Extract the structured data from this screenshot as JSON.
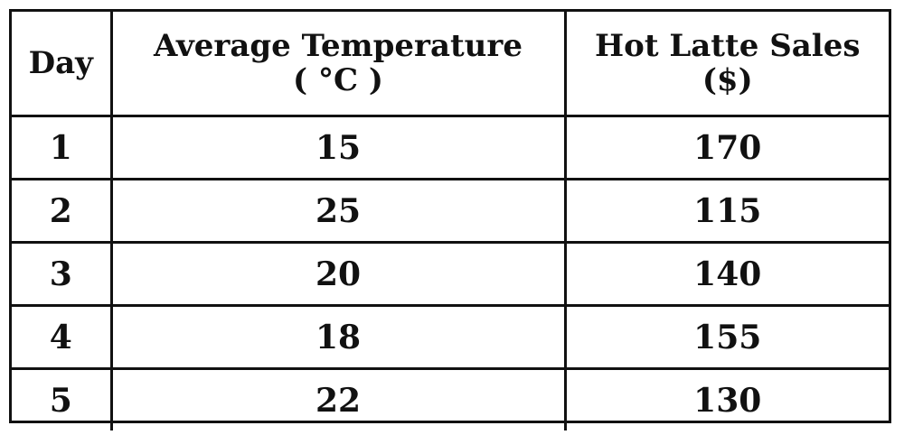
{
  "chart_data": {
    "type": "table",
    "columns": [
      {
        "name": "Day"
      },
      {
        "name": "Average Temperature",
        "unit": "( °C )"
      },
      {
        "name": "Hot Latte Sales",
        "unit": "($)"
      }
    ],
    "rows": [
      {
        "day": "1",
        "temperature": "15",
        "sales": "170"
      },
      {
        "day": "2",
        "temperature": "25",
        "sales": "115"
      },
      {
        "day": "3",
        "temperature": "20",
        "sales": "140"
      },
      {
        "day": "4",
        "temperature": "18",
        "sales": "155"
      },
      {
        "day": "5",
        "temperature": "22",
        "sales": "130"
      }
    ]
  }
}
